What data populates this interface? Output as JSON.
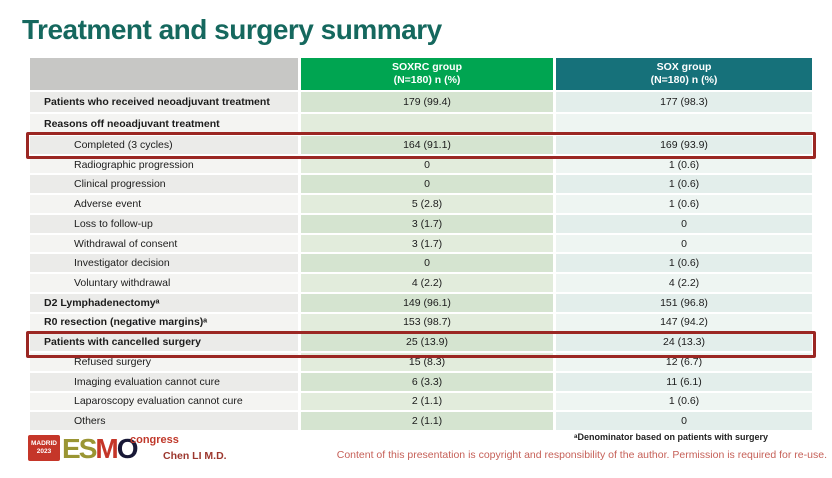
{
  "title": "Treatment and surgery summary",
  "colors": {
    "title_teal": "#15685e",
    "header_green": "#00a551",
    "header_teal": "#16717a",
    "highlight_red": "#9b2723",
    "logo_red": "#c53629",
    "copyright_red": "#c66058"
  },
  "table": {
    "columns": {
      "soxrc": {
        "line1": "SOXRC group",
        "line2": "(N=180)  n (%)"
      },
      "sox": {
        "line1": "SOX group",
        "line2": "(N=180)  n (%)"
      }
    },
    "highlighted_rows": [
      "Completed (3 cycles)",
      "Patients with cancelled surgery"
    ],
    "rows": [
      {
        "label": "Patients who received neoadjuvant treatment",
        "soxrc": "179 (99.4)",
        "sox": "177 (98.3)"
      },
      {
        "label": "Reasons off neoadjuvant treatment",
        "soxrc": "",
        "sox": ""
      },
      {
        "label": "Completed (3 cycles)",
        "soxrc": "164 (91.1)",
        "sox": "169 (93.9)"
      },
      {
        "label": "Radiographic progression",
        "soxrc": "0",
        "sox": "1 (0.6)"
      },
      {
        "label": "Clinical progression",
        "soxrc": "0",
        "sox": "1 (0.6)"
      },
      {
        "label": "Adverse event",
        "soxrc": "5 (2.8)",
        "sox": "1 (0.6)"
      },
      {
        "label": "Loss to follow-up",
        "soxrc": "3 (1.7)",
        "sox": "0"
      },
      {
        "label": "Withdrawal of consent",
        "soxrc": "3 (1.7)",
        "sox": "0"
      },
      {
        "label": "Investigator decision",
        "soxrc": "0",
        "sox": "1 (0.6)"
      },
      {
        "label": "Voluntary withdrawal",
        "soxrc": "4 (2.2)",
        "sox": "4 (2.2)"
      },
      {
        "label": "D2 Lymphadenectomyᵃ",
        "soxrc": "149 (96.1)",
        "sox": "151 (96.8)"
      },
      {
        "label": "R0 resection (negative margins)ᵃ",
        "soxrc": "153 (98.7)",
        "sox": "147 (94.2)"
      },
      {
        "label": "Patients with cancelled surgery",
        "soxrc": "25 (13.9)",
        "sox": "24 (13.3)"
      },
      {
        "label": "Refused surgery",
        "soxrc": "15 (8.3)",
        "sox": "12 (6.7)"
      },
      {
        "label": "Imaging evaluation cannot cure",
        "soxrc": "6 (3.3)",
        "sox": "11 (6.1)"
      },
      {
        "label": "Laparoscopy evaluation cannot cure",
        "soxrc": "2 (1.1)",
        "sox": "1 (0.6)"
      },
      {
        "label": "Others",
        "soxrc": "2 (1.1)",
        "sox": "0"
      }
    ]
  },
  "footer": {
    "logo": {
      "madrid_line1": "MADRID",
      "madrid_line2": "2023",
      "esmo_e": "E",
      "esmo_s": "S",
      "esmo_m": "M",
      "esmo_o": "O",
      "congress": "congress"
    },
    "presenter": "Chen LI M.D.",
    "footnote": "ᵃDenominator based on patients with surgery",
    "copyright": "Content of this presentation is copyright and responsibility of the author. Permission is required for re-use."
  }
}
